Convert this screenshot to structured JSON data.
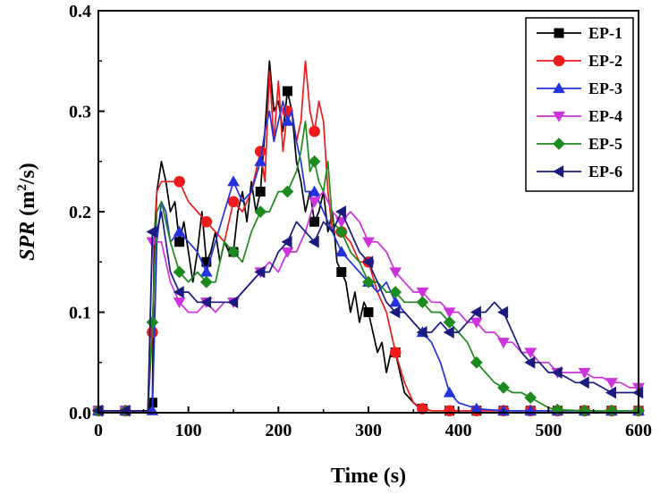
{
  "chart_data": {
    "type": "line",
    "xlabel": "Time (s)",
    "ylabel_main": "SPR",
    "ylabel_unit_pre": " (m",
    "ylabel_unit_sup": "2",
    "ylabel_unit_post": "/s)",
    "xlim": [
      0,
      600
    ],
    "ylim": [
      0,
      0.4
    ],
    "x_ticks": [
      "0",
      "100",
      "200",
      "300",
      "400",
      "500",
      "600"
    ],
    "y_ticks": [
      "0.0",
      "0.1",
      "0.2",
      "0.3",
      "0.4"
    ],
    "grid": false,
    "legend_position": "top-right",
    "series": [
      {
        "name": "EP-1",
        "color": "#000000",
        "marker": "square",
        "x": [
          0,
          30,
          55,
          60,
          62,
          65,
          70,
          75,
          80,
          85,
          90,
          95,
          100,
          105,
          110,
          115,
          120,
          125,
          130,
          135,
          140,
          145,
          150,
          155,
          160,
          165,
          170,
          175,
          180,
          185,
          190,
          195,
          200,
          205,
          210,
          215,
          220,
          225,
          230,
          235,
          240,
          245,
          250,
          255,
          260,
          265,
          270,
          275,
          280,
          285,
          290,
          295,
          300,
          305,
          310,
          315,
          320,
          325,
          330,
          335,
          340,
          345,
          350,
          355,
          360,
          370,
          380,
          390,
          420,
          450,
          480,
          510,
          540,
          570,
          600
        ],
        "y": [
          0.002,
          0.002,
          0.002,
          0.01,
          0.17,
          0.22,
          0.25,
          0.23,
          0.2,
          0.21,
          0.17,
          0.19,
          0.16,
          0.13,
          0.16,
          0.2,
          0.15,
          0.16,
          0.18,
          0.15,
          0.17,
          0.16,
          0.16,
          0.2,
          0.22,
          0.19,
          0.23,
          0.2,
          0.22,
          0.28,
          0.35,
          0.3,
          0.31,
          0.28,
          0.32,
          0.3,
          0.25,
          0.23,
          0.2,
          0.22,
          0.19,
          0.2,
          0.22,
          0.18,
          0.2,
          0.15,
          0.14,
          0.13,
          0.1,
          0.12,
          0.09,
          0.11,
          0.1,
          0.08,
          0.06,
          0.07,
          0.04,
          0.06,
          0.06,
          0.04,
          0.02,
          0.015,
          0.01,
          0.006,
          0.004,
          0.002,
          0.002,
          0.002,
          0.002,
          0.002,
          0.002,
          0.002,
          0.002,
          0.002,
          0.002
        ],
        "markers_x": [
          0,
          30,
          60,
          90,
          120,
          150,
          180,
          210,
          240,
          270,
          300,
          330,
          360,
          390,
          420,
          450,
          480,
          510,
          540,
          570,
          600
        ]
      },
      {
        "name": "EP-2",
        "color": "#ee1c1c",
        "marker": "circle",
        "x": [
          0,
          30,
          55,
          60,
          65,
          70,
          80,
          90,
          100,
          110,
          120,
          130,
          140,
          150,
          160,
          170,
          180,
          185,
          190,
          195,
          200,
          205,
          210,
          215,
          220,
          225,
          230,
          235,
          240,
          245,
          250,
          255,
          260,
          270,
          280,
          290,
          300,
          310,
          320,
          330,
          340,
          350,
          360,
          370,
          390,
          420,
          450,
          480,
          510,
          540,
          570,
          600
        ],
        "y": [
          0.002,
          0.002,
          0.002,
          0.08,
          0.22,
          0.23,
          0.23,
          0.23,
          0.21,
          0.2,
          0.19,
          0.18,
          0.17,
          0.21,
          0.2,
          0.22,
          0.26,
          0.23,
          0.34,
          0.27,
          0.33,
          0.26,
          0.3,
          0.3,
          0.27,
          0.29,
          0.35,
          0.3,
          0.28,
          0.31,
          0.29,
          0.22,
          0.18,
          0.18,
          0.17,
          0.15,
          0.15,
          0.12,
          0.1,
          0.06,
          0.03,
          0.01,
          0.004,
          0.002,
          0.002,
          0.002,
          0.002,
          0.002,
          0.002,
          0.002,
          0.002,
          0.002
        ],
        "markers_x": [
          0,
          30,
          60,
          90,
          120,
          150,
          180,
          210,
          240,
          270,
          300,
          330,
          360,
          390,
          420,
          450,
          480,
          510,
          540,
          570,
          600
        ]
      },
      {
        "name": "EP-3",
        "color": "#2233dd",
        "marker": "triangle-up",
        "x": [
          0,
          30,
          60,
          65,
          70,
          75,
          80,
          90,
          100,
          110,
          120,
          130,
          140,
          150,
          160,
          170,
          180,
          185,
          190,
          195,
          200,
          205,
          210,
          215,
          220,
          225,
          230,
          240,
          250,
          260,
          270,
          280,
          290,
          300,
          310,
          320,
          330,
          340,
          350,
          360,
          370,
          380,
          390,
          400,
          420,
          450,
          480,
          510,
          540,
          570,
          600
        ],
        "y": [
          0.002,
          0.002,
          0.002,
          0.17,
          0.21,
          0.2,
          0.17,
          0.18,
          0.17,
          0.16,
          0.14,
          0.17,
          0.2,
          0.23,
          0.21,
          0.22,
          0.25,
          0.28,
          0.3,
          0.27,
          0.29,
          0.31,
          0.29,
          0.3,
          0.27,
          0.25,
          0.22,
          0.22,
          0.2,
          0.18,
          0.16,
          0.15,
          0.14,
          0.13,
          0.12,
          0.13,
          0.11,
          0.1,
          0.09,
          0.08,
          0.07,
          0.05,
          0.02,
          0.01,
          0.004,
          0.002,
          0.002,
          0.002,
          0.002,
          0.002,
          0.002
        ],
        "markers_x": [
          0,
          30,
          60,
          90,
          120,
          150,
          180,
          210,
          240,
          270,
          300,
          330,
          360,
          390,
          420,
          450,
          480,
          510,
          540,
          570,
          600
        ]
      },
      {
        "name": "EP-4",
        "color": "#cc33dd",
        "marker": "triangle-down",
        "x": [
          0,
          30,
          55,
          60,
          65,
          70,
          80,
          90,
          100,
          110,
          120,
          130,
          140,
          150,
          160,
          170,
          180,
          190,
          200,
          210,
          220,
          230,
          240,
          250,
          260,
          270,
          280,
          290,
          300,
          310,
          320,
          330,
          340,
          350,
          360,
          370,
          380,
          390,
          400,
          410,
          420,
          430,
          440,
          450,
          460,
          470,
          480,
          490,
          500,
          510,
          520,
          530,
          540,
          550,
          560,
          570,
          580,
          590,
          600
        ],
        "y": [
          0.002,
          0.002,
          0.002,
          0.17,
          0.17,
          0.17,
          0.13,
          0.11,
          0.1,
          0.1,
          0.11,
          0.1,
          0.11,
          0.11,
          0.12,
          0.13,
          0.14,
          0.15,
          0.14,
          0.16,
          0.16,
          0.18,
          0.21,
          0.22,
          0.2,
          0.19,
          0.2,
          0.19,
          0.17,
          0.17,
          0.16,
          0.14,
          0.13,
          0.12,
          0.12,
          0.11,
          0.11,
          0.1,
          0.1,
          0.09,
          0.09,
          0.08,
          0.08,
          0.07,
          0.07,
          0.06,
          0.06,
          0.05,
          0.05,
          0.04,
          0.04,
          0.04,
          0.04,
          0.035,
          0.035,
          0.03,
          0.03,
          0.025,
          0.025
        ],
        "markers_x": [
          0,
          30,
          60,
          90,
          120,
          150,
          180,
          210,
          240,
          270,
          300,
          330,
          360,
          390,
          420,
          450,
          480,
          510,
          540,
          570,
          600
        ]
      },
      {
        "name": "EP-5",
        "color": "#1d8a1d",
        "marker": "diamond",
        "x": [
          0,
          30,
          55,
          60,
          65,
          70,
          80,
          90,
          100,
          110,
          120,
          130,
          140,
          150,
          160,
          170,
          180,
          190,
          200,
          210,
          220,
          225,
          230,
          235,
          240,
          245,
          250,
          255,
          260,
          270,
          280,
          290,
          300,
          310,
          320,
          330,
          340,
          350,
          360,
          370,
          380,
          390,
          400,
          410,
          420,
          430,
          440,
          450,
          460,
          470,
          480,
          490,
          500,
          510,
          540,
          570,
          600
        ],
        "y": [
          0.002,
          0.002,
          0.002,
          0.09,
          0.2,
          0.21,
          0.17,
          0.14,
          0.13,
          0.14,
          0.13,
          0.13,
          0.17,
          0.16,
          0.15,
          0.18,
          0.2,
          0.2,
          0.22,
          0.22,
          0.24,
          0.26,
          0.29,
          0.24,
          0.25,
          0.23,
          0.22,
          0.25,
          0.19,
          0.18,
          0.16,
          0.15,
          0.13,
          0.13,
          0.12,
          0.12,
          0.11,
          0.11,
          0.11,
          0.1,
          0.1,
          0.09,
          0.08,
          0.07,
          0.05,
          0.04,
          0.03,
          0.025,
          0.02,
          0.02,
          0.015,
          0.01,
          0.005,
          0.003,
          0.002,
          0.002,
          0.002
        ],
        "markers_x": [
          0,
          30,
          60,
          90,
          120,
          150,
          180,
          210,
          240,
          270,
          300,
          330,
          360,
          390,
          420,
          450,
          480,
          510,
          540,
          570,
          600
        ]
      },
      {
        "name": "EP-6",
        "color": "#1a1a80",
        "marker": "triangle-left",
        "x": [
          0,
          30,
          55,
          60,
          65,
          70,
          80,
          90,
          100,
          110,
          120,
          130,
          140,
          150,
          160,
          170,
          180,
          190,
          200,
          210,
          220,
          230,
          240,
          250,
          260,
          270,
          280,
          290,
          300,
          310,
          320,
          330,
          340,
          350,
          360,
          370,
          380,
          390,
          400,
          410,
          420,
          430,
          440,
          450,
          460,
          470,
          480,
          490,
          500,
          510,
          520,
          530,
          540,
          550,
          560,
          570,
          580,
          590,
          600
        ],
        "y": [
          0.002,
          0.002,
          0.002,
          0.18,
          0.18,
          0.2,
          0.14,
          0.12,
          0.12,
          0.11,
          0.11,
          0.11,
          0.11,
          0.11,
          0.12,
          0.13,
          0.14,
          0.14,
          0.16,
          0.17,
          0.19,
          0.18,
          0.17,
          0.19,
          0.18,
          0.2,
          0.18,
          0.16,
          0.15,
          0.13,
          0.11,
          0.1,
          0.1,
          0.09,
          0.08,
          0.08,
          0.09,
          0.08,
          0.08,
          0.09,
          0.1,
          0.1,
          0.11,
          0.1,
          0.08,
          0.06,
          0.05,
          0.05,
          0.04,
          0.04,
          0.035,
          0.03,
          0.03,
          0.03,
          0.025,
          0.02,
          0.02,
          0.02,
          0.02
        ],
        "markers_x": [
          0,
          30,
          60,
          90,
          120,
          150,
          180,
          210,
          240,
          270,
          300,
          330,
          360,
          390,
          420,
          450,
          480,
          510,
          540,
          570,
          600
        ]
      }
    ]
  }
}
